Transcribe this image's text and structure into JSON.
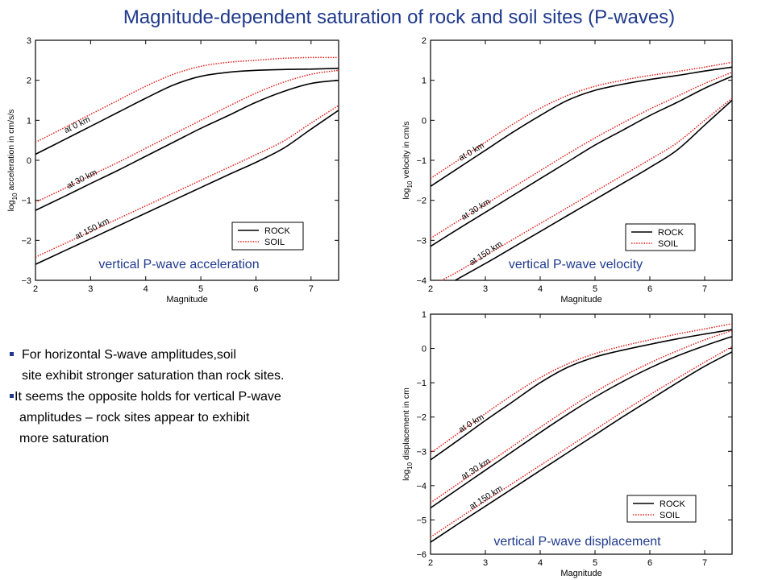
{
  "title": "Magnitude-dependent saturation of rock and soil sites (P-waves)",
  "bullets": [
    {
      "line1": "For horizontal S-wave amplitudes,soil",
      "line2": "site exhibit stronger saturation than rock sites."
    },
    {
      "line1": "It seems the opposite holds for vertical P-wave",
      "line2": "amplitudes – rock sites appear to exhibit",
      "line3": "more saturation"
    }
  ],
  "colors": {
    "title": "#1f3a8c",
    "caption": "#1f3a8c",
    "rock": "#000000",
    "soil": "#e0201b"
  },
  "chart_data": [
    {
      "type": "line",
      "caption": "vertical P-wave acceleration",
      "xlabel": "Magnitude",
      "ylabel": "log10 acceleration in cm/s/s",
      "xlim": [
        2,
        7.5
      ],
      "ylim": [
        -3,
        3
      ],
      "xticks": [
        2,
        3,
        4,
        5,
        6,
        7
      ],
      "yticks": [
        -3,
        -2,
        -1,
        0,
        1,
        2,
        3
      ],
      "legend": {
        "position": "bottom-right",
        "entries": [
          "ROCK",
          "SOIL"
        ]
      },
      "annotations": [
        "at 0 km",
        "at 30 km",
        "at 150 km"
      ],
      "series": [
        {
          "name": "ROCK",
          "distance": "at 0 km",
          "x": [
            2,
            2.5,
            3,
            3.5,
            4,
            4.5,
            5,
            5.5,
            6,
            6.5,
            7,
            7.5
          ],
          "y": [
            0.15,
            0.5,
            0.85,
            1.2,
            1.55,
            1.88,
            2.1,
            2.2,
            2.25,
            2.27,
            2.28,
            2.3
          ]
        },
        {
          "name": "SOIL",
          "distance": "at 0 km",
          "x": [
            2,
            2.5,
            3,
            3.5,
            4,
            4.5,
            5,
            5.5,
            6,
            6.5,
            7,
            7.5
          ],
          "y": [
            0.45,
            0.8,
            1.15,
            1.5,
            1.85,
            2.15,
            2.35,
            2.45,
            2.5,
            2.55,
            2.57,
            2.57
          ]
        },
        {
          "name": "ROCK",
          "distance": "at 30 km",
          "x": [
            2,
            2.5,
            3,
            3.5,
            4,
            4.5,
            5,
            5.5,
            6,
            6.5,
            7,
            7.5
          ],
          "y": [
            -1.25,
            -0.92,
            -0.58,
            -0.25,
            0.1,
            0.45,
            0.8,
            1.12,
            1.45,
            1.72,
            1.92,
            2.0
          ]
        },
        {
          "name": "SOIL",
          "distance": "at 30 km",
          "x": [
            2,
            2.5,
            3,
            3.5,
            4,
            4.5,
            5,
            5.5,
            6,
            6.5,
            7,
            7.5
          ],
          "y": [
            -1.05,
            -0.72,
            -0.38,
            -0.05,
            0.3,
            0.65,
            1.0,
            1.35,
            1.68,
            1.95,
            2.15,
            2.25
          ]
        },
        {
          "name": "ROCK",
          "distance": "at 150 km",
          "x": [
            2,
            2.5,
            3,
            3.5,
            4,
            4.5,
            5,
            5.5,
            6,
            6.5,
            7,
            7.5
          ],
          "y": [
            -2.6,
            -2.28,
            -1.96,
            -1.64,
            -1.32,
            -1.0,
            -0.68,
            -0.36,
            -0.05,
            0.3,
            0.78,
            1.25
          ]
        },
        {
          "name": "SOIL",
          "distance": "at 150 km",
          "x": [
            2,
            2.5,
            3,
            3.5,
            4,
            4.5,
            5,
            5.5,
            6,
            6.5,
            7,
            7.5
          ],
          "y": [
            -2.42,
            -2.1,
            -1.78,
            -1.46,
            -1.14,
            -0.82,
            -0.5,
            -0.18,
            0.14,
            0.48,
            0.93,
            1.37
          ]
        }
      ]
    },
    {
      "type": "line",
      "caption": "vertical P-wave velocity",
      "xlabel": "Magnitude",
      "ylabel": "log10 velocity in cm/s",
      "xlim": [
        2,
        7.5
      ],
      "ylim": [
        -4,
        2
      ],
      "xticks": [
        2,
        3,
        4,
        5,
        6,
        7
      ],
      "yticks": [
        -4,
        -3,
        -2,
        -1,
        0,
        1,
        2
      ],
      "legend": {
        "position": "bottom-right",
        "entries": [
          "ROCK",
          "SOIL"
        ]
      },
      "annotations": [
        "at 0 km",
        "at 30 km",
        "at 150 km"
      ],
      "series": [
        {
          "name": "ROCK",
          "distance": "at 0 km",
          "x": [
            2,
            2.5,
            3,
            3.5,
            4,
            4.5,
            5,
            5.5,
            6,
            6.5,
            7,
            7.5
          ],
          "y": [
            -1.65,
            -1.2,
            -0.75,
            -0.3,
            0.12,
            0.5,
            0.75,
            0.9,
            1.02,
            1.12,
            1.23,
            1.33
          ]
        },
        {
          "name": "SOIL",
          "distance": "at 0 km",
          "x": [
            2,
            2.5,
            3,
            3.5,
            4,
            4.5,
            5,
            5.5,
            6,
            6.5,
            7,
            7.5
          ],
          "y": [
            -1.45,
            -1.0,
            -0.55,
            -0.1,
            0.3,
            0.62,
            0.85,
            1.0,
            1.12,
            1.22,
            1.33,
            1.45
          ]
        },
        {
          "name": "ROCK",
          "distance": "at 30 km",
          "x": [
            2,
            2.5,
            3,
            3.5,
            4,
            4.5,
            5,
            5.5,
            6,
            6.5,
            7,
            7.5
          ],
          "y": [
            -3.15,
            -2.72,
            -2.3,
            -1.88,
            -1.46,
            -1.04,
            -0.62,
            -0.25,
            0.12,
            0.45,
            0.8,
            1.1
          ]
        },
        {
          "name": "SOIL",
          "distance": "at 30 km",
          "x": [
            2,
            2.5,
            3,
            3.5,
            4,
            4.5,
            5,
            5.5,
            6,
            6.5,
            7,
            7.5
          ],
          "y": [
            -2.95,
            -2.52,
            -2.1,
            -1.68,
            -1.26,
            -0.84,
            -0.44,
            -0.07,
            0.28,
            0.6,
            0.92,
            1.2
          ]
        },
        {
          "name": "ROCK",
          "distance": "at 150 km",
          "x": [
            2.45,
            3,
            3.5,
            4,
            4.5,
            5,
            5.5,
            6,
            6.5,
            7,
            7.5
          ],
          "y": [
            -4.0,
            -3.58,
            -3.18,
            -2.78,
            -2.38,
            -1.98,
            -1.58,
            -1.18,
            -0.74,
            -0.12,
            0.5
          ]
        },
        {
          "name": "SOIL",
          "distance": "at 150 km",
          "x": [
            2.2,
            2.5,
            3,
            3.5,
            4,
            4.5,
            5,
            5.5,
            6,
            6.5,
            7,
            7.5
          ],
          "y": [
            -4.0,
            -3.78,
            -3.38,
            -2.98,
            -2.58,
            -2.18,
            -1.78,
            -1.38,
            -0.98,
            -0.56,
            0.0,
            0.55
          ]
        }
      ]
    },
    {
      "type": "line",
      "caption": "vertical P-wave displacement",
      "xlabel": "Magnitude",
      "ylabel": "log10 displacement in cm",
      "xlim": [
        2,
        7.5
      ],
      "ylim": [
        -6,
        1
      ],
      "xticks": [
        2,
        3,
        4,
        5,
        6,
        7
      ],
      "yticks": [
        -6,
        -5,
        -4,
        -3,
        -2,
        -1,
        0,
        1
      ],
      "legend": {
        "position": "bottom-right",
        "entries": [
          "ROCK",
          "SOIL"
        ]
      },
      "annotations": [
        "at 0 km",
        "at 30 km",
        "at 150 km"
      ],
      "series": [
        {
          "name": "ROCK",
          "distance": "at 0 km",
          "x": [
            2,
            2.5,
            3,
            3.5,
            4,
            4.5,
            5,
            5.5,
            6,
            6.5,
            7,
            7.5
          ],
          "y": [
            -3.25,
            -2.68,
            -2.1,
            -1.55,
            -1.0,
            -0.55,
            -0.25,
            -0.05,
            0.12,
            0.28,
            0.42,
            0.55
          ]
        },
        {
          "name": "SOIL",
          "distance": "at 0 km",
          "x": [
            2,
            2.5,
            3,
            3.5,
            4,
            4.5,
            5,
            5.5,
            6,
            6.5,
            7,
            7.5
          ],
          "y": [
            -3.05,
            -2.48,
            -1.9,
            -1.35,
            -0.85,
            -0.45,
            -0.15,
            0.07,
            0.25,
            0.42,
            0.57,
            0.72
          ]
        },
        {
          "name": "ROCK",
          "distance": "at 30 km",
          "x": [
            2,
            2.5,
            3,
            3.5,
            4,
            4.5,
            5,
            5.5,
            6,
            6.5,
            7,
            7.5
          ],
          "y": [
            -4.65,
            -4.1,
            -3.55,
            -3.0,
            -2.45,
            -1.92,
            -1.42,
            -0.97,
            -0.57,
            -0.22,
            0.08,
            0.35
          ]
        },
        {
          "name": "SOIL",
          "distance": "at 30 km",
          "x": [
            2,
            2.5,
            3,
            3.5,
            4,
            4.5,
            5,
            5.5,
            6,
            6.5,
            7,
            7.5
          ],
          "y": [
            -4.5,
            -3.95,
            -3.4,
            -2.85,
            -2.3,
            -1.77,
            -1.27,
            -0.82,
            -0.42,
            -0.07,
            0.25,
            0.52
          ]
        },
        {
          "name": "ROCK",
          "distance": "at 150 km",
          "x": [
            2,
            2.5,
            3,
            3.5,
            4,
            4.5,
            5,
            5.5,
            6,
            6.5,
            7,
            7.5
          ],
          "y": [
            -5.65,
            -5.12,
            -4.6,
            -4.08,
            -3.56,
            -3.04,
            -2.52,
            -2.0,
            -1.5,
            -1.0,
            -0.52,
            -0.1
          ]
        },
        {
          "name": "SOIL",
          "distance": "at 150 km",
          "x": [
            2,
            2.5,
            3,
            3.5,
            4,
            4.5,
            5,
            5.5,
            6,
            6.5,
            7,
            7.5
          ],
          "y": [
            -5.5,
            -4.97,
            -4.45,
            -3.93,
            -3.41,
            -2.89,
            -2.37,
            -1.85,
            -1.35,
            -0.87,
            -0.4,
            0.05
          ]
        }
      ]
    }
  ]
}
